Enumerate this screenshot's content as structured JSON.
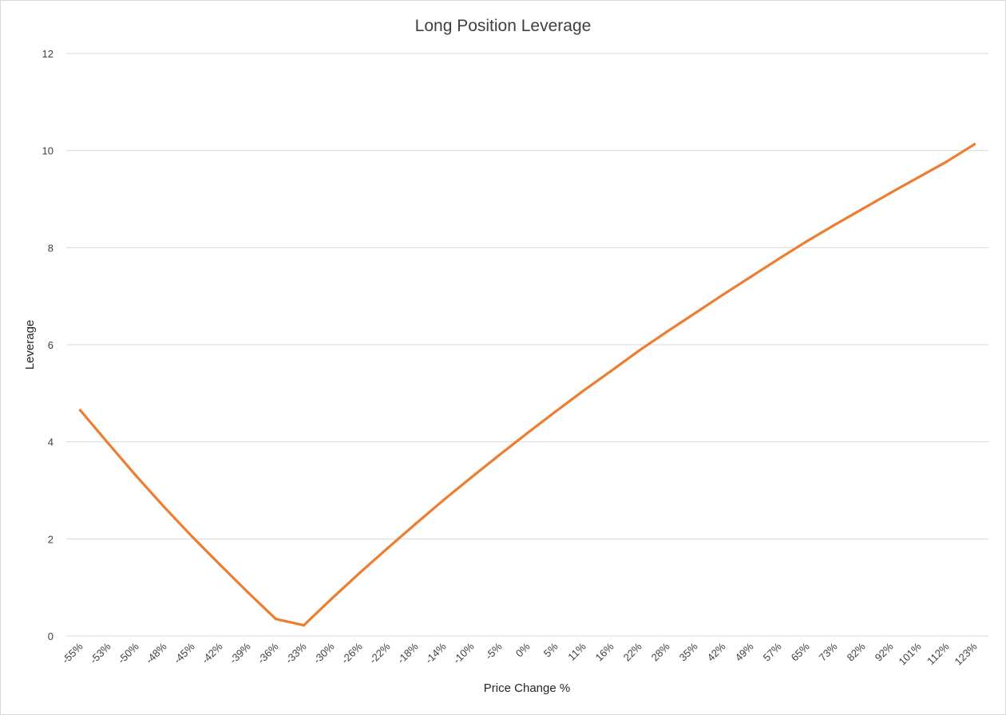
{
  "chart_data": {
    "type": "line",
    "title": "Long Position Leverage",
    "xlabel": "Price Change %",
    "ylabel": "Leverage",
    "ylim": [
      0,
      12
    ],
    "yticks": [
      "0",
      "2",
      "4",
      "6",
      "8",
      "10",
      "12"
    ],
    "grid": true,
    "legend": "none",
    "categories": [
      "-55%",
      "-53%",
      "-50%",
      "-48%",
      "-45%",
      "-42%",
      "-39%",
      "-36%",
      "-33%",
      "-30%",
      "-26%",
      "-22%",
      "-18%",
      "-14%",
      "-10%",
      "-5%",
      "0%",
      "5%",
      "11%",
      "16%",
      "22%",
      "28%",
      "35%",
      "42%",
      "49%",
      "57%",
      "65%",
      "73%",
      "82%",
      "92%",
      "101%",
      "112%",
      "123%"
    ],
    "series": [
      {
        "name": "",
        "color": "#ED7D31",
        "values": [
          4.65,
          3.97,
          3.3,
          2.66,
          2.05,
          1.47,
          0.9,
          0.35,
          0.22,
          0.77,
          1.3,
          1.81,
          2.31,
          2.8,
          3.27,
          3.73,
          4.18,
          4.62,
          5.05,
          5.46,
          5.88,
          6.27,
          6.65,
          7.03,
          7.4,
          7.77,
          8.13,
          8.47,
          8.8,
          9.13,
          9.45,
          9.77,
          10.13
        ]
      }
    ]
  }
}
